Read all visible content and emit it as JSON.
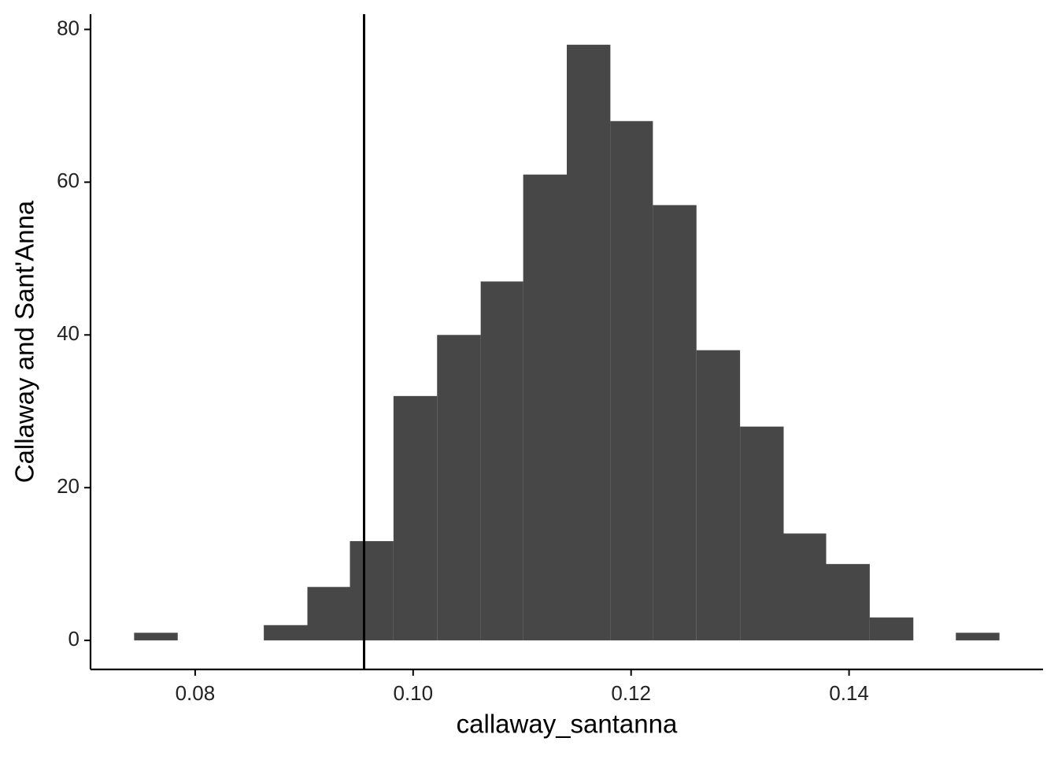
{
  "chart_data": {
    "type": "histogram",
    "x_label": "callaway_santanna",
    "y_label": "Callaway and Sant'Anna",
    "bins": [
      0.0744,
      0.0784,
      0.0823,
      0.0863,
      0.0903,
      0.0942,
      0.0982,
      0.1022,
      0.1062,
      0.1101,
      0.1141,
      0.1181,
      0.122,
      0.126,
      0.13,
      0.134,
      0.1379,
      0.1419,
      0.1459,
      0.1498,
      0.1538
    ],
    "values": [
      1,
      0,
      0,
      2,
      7,
      13,
      32,
      40,
      47,
      61,
      78,
      68,
      57,
      38,
      28,
      14,
      10,
      3,
      0,
      1
    ],
    "color": "#474747",
    "vline": 0.0955,
    "xlim": [
      0.0704,
      0.1578
    ],
    "xticks": [
      0.08,
      {
        "value": 0.1,
        "label": "0.10"
      },
      0.12,
      0.14
    ],
    "ylim": [
      -3.8,
      82
    ],
    "yticks": [
      0,
      20,
      40,
      60,
      80
    ]
  }
}
